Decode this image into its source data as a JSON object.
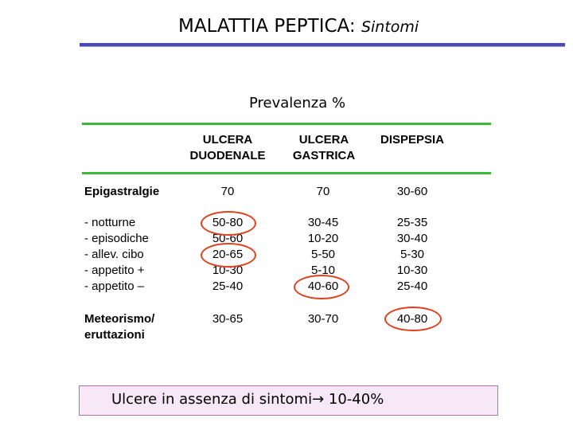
{
  "title": {
    "main": "MALATTIA PEPTICA:",
    "sub": "Sintomi"
  },
  "subtitle": "Prevalenza %",
  "table": {
    "columns": [
      {
        "line1": "ULCERA",
        "line2": "DUODENALE"
      },
      {
        "line1": "ULCERA",
        "line2": "GASTRICA"
      },
      {
        "line1": "DISPEPSIA",
        "line2": ""
      }
    ],
    "rows": [
      {
        "label": "Epigastralgie",
        "bold": true,
        "values": [
          "70",
          "70",
          "30-60"
        ]
      },
      {
        "label": "- notturne",
        "bold": false,
        "values": [
          "50-80",
          "30-45",
          "25-35"
        ]
      },
      {
        "label": "- episodiche",
        "bold": false,
        "values": [
          "50-60",
          "10-20",
          "30-40"
        ]
      },
      {
        "label": "- allev. cibo",
        "bold": false,
        "values": [
          "20-65",
          "5-50",
          "5-30"
        ]
      },
      {
        "label": "- appetito +",
        "bold": false,
        "values": [
          "10-30",
          "5-10",
          "10-30"
        ]
      },
      {
        "label": "- appetito –",
        "bold": false,
        "values": [
          "25-40",
          "40-60",
          "25-40"
        ]
      },
      {
        "label": "Meteorismo/",
        "label2": "eruttazioni",
        "bold": true,
        "values": [
          "30-65",
          "30-70",
          "40-80"
        ]
      }
    ],
    "highlight_color": "#e0411e"
  },
  "footer": "Ulcere in assenza di sintomi→ 10-40%",
  "colors": {
    "title_rule": "#4a4ab4",
    "table_rule": "#3cb83c",
    "footer_bg": "#f6e8f6"
  }
}
